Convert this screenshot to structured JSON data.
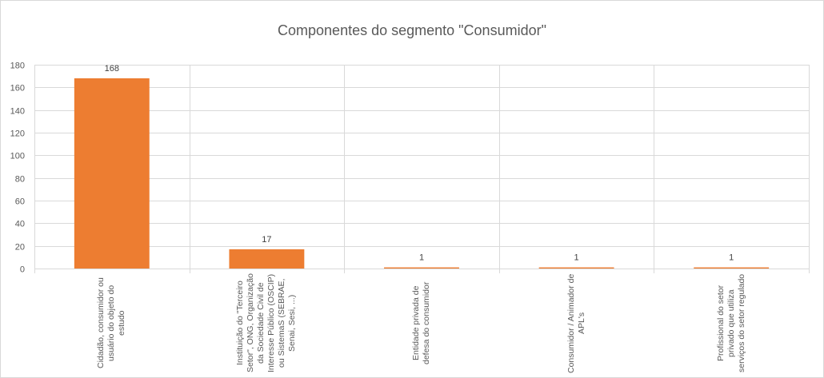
{
  "chart_data": {
    "type": "bar",
    "title": "Componentes do segmento \"Consumidor\"",
    "xlabel": "",
    "ylabel": "",
    "ylim": [
      0,
      180
    ],
    "yticks": [
      0,
      20,
      40,
      60,
      80,
      100,
      120,
      140,
      160,
      180
    ],
    "grid": true,
    "legend": null,
    "bar_color": "#ED7D31",
    "categories": [
      "Cidadão, consumidor ou usuário do objeto do estudo",
      "Instituição do \"Terceiro Setor\", ONG, Organização da Sociedade Civil de Interesse Público (OSCIP) ou SistemaS (SEBRAE, Senai, Sesi, ...)",
      "Entidade privada de defesa do consumidor",
      "Consumidor / Animador de APL's",
      "Profissional do setor privado que utiliza serviços do setor regulado"
    ],
    "values": [
      168,
      17,
      1,
      1,
      1
    ],
    "data_labels": [
      "168",
      "17",
      "1",
      "1",
      "1"
    ]
  },
  "colors": {
    "bar": "#ED7D31",
    "grid": "#d9d9d9",
    "text": "#595959"
  }
}
